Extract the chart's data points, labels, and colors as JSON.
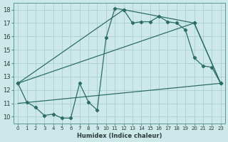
{
  "xlabel": "Humidex (Indice chaleur)",
  "background_color": "#cce8e8",
  "line_color": "#2d6e63",
  "grid_color": "#b0d4d4",
  "xlim": [
    -0.5,
    23.5
  ],
  "ylim": [
    9.5,
    18.5
  ],
  "xticks": [
    0,
    1,
    2,
    3,
    4,
    5,
    6,
    7,
    8,
    9,
    10,
    11,
    12,
    13,
    14,
    15,
    16,
    17,
    18,
    19,
    20,
    21,
    22,
    23
  ],
  "yticks": [
    10,
    11,
    12,
    13,
    14,
    15,
    16,
    17,
    18
  ],
  "line1_x": [
    0,
    1,
    2,
    3,
    4,
    5,
    6,
    7,
    8,
    9,
    10,
    11,
    12,
    13,
    14,
    15,
    16,
    17,
    18,
    19,
    20,
    21,
    22,
    23
  ],
  "line1_y": [
    12.5,
    11.1,
    10.7,
    10.1,
    10.2,
    9.9,
    9.9,
    12.5,
    11.1,
    10.5,
    15.9,
    18.1,
    18.0,
    17.0,
    17.1,
    17.1,
    17.5,
    17.1,
    17.0,
    16.5,
    14.4,
    13.8,
    13.7,
    12.5
  ],
  "line2_x": [
    0,
    12,
    20,
    23
  ],
  "line2_y": [
    12.5,
    18.0,
    17.0,
    12.5
  ],
  "line3_x": [
    0,
    20,
    23
  ],
  "line3_y": [
    12.5,
    17.0,
    12.5
  ],
  "line4_x": [
    0,
    23
  ],
  "line4_y": [
    11.0,
    12.5
  ]
}
